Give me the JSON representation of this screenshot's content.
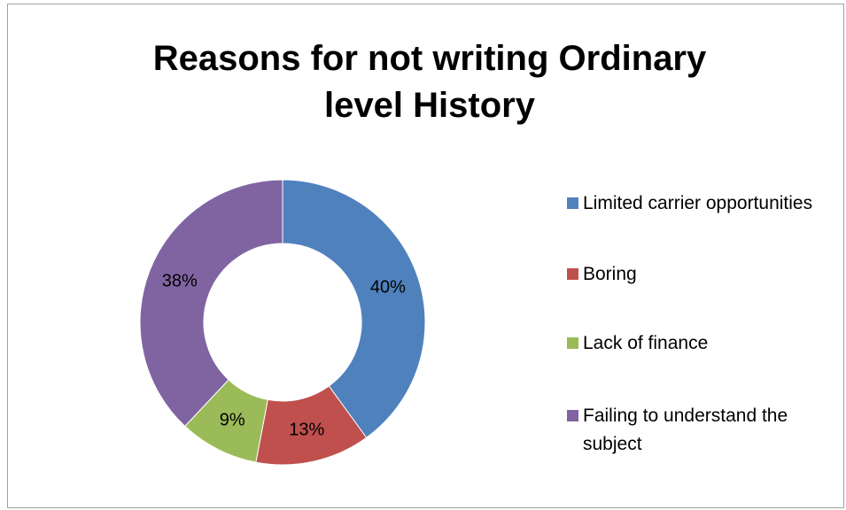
{
  "chart_data": {
    "type": "donut",
    "title": "Reasons for not writing Ordinary level History",
    "categories": [
      "Limited carrier opportunities",
      "Boring",
      "Lack of finance",
      "Failing to understand the subject"
    ],
    "values": [
      40,
      13,
      9,
      38
    ],
    "value_labels": [
      "40%",
      "13%",
      "9%",
      "38%"
    ],
    "colors": [
      "#4f81bd",
      "#c0504d",
      "#9bbb59",
      "#8064a2"
    ],
    "legend": "right"
  }
}
